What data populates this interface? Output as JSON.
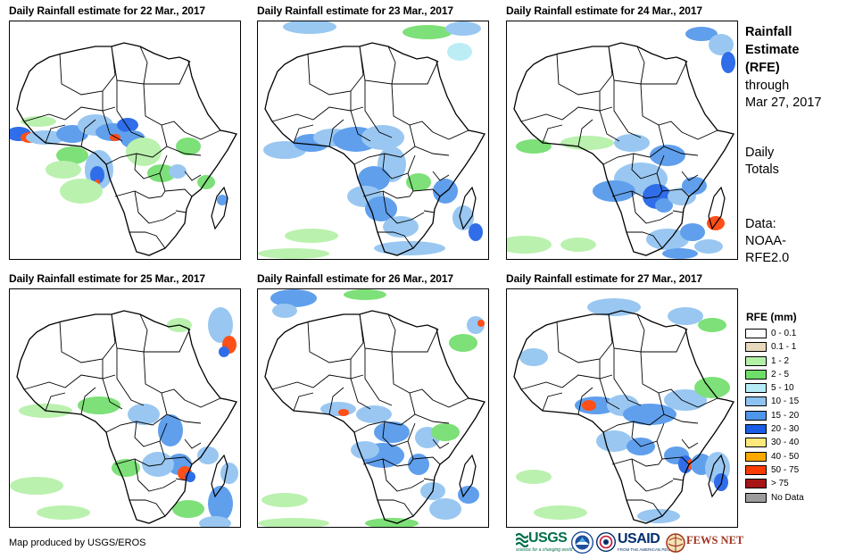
{
  "panels": [
    {
      "title": "Daily Rainfall estimate for 22 Mar., 2017"
    },
    {
      "title": "Daily Rainfall estimate for 23 Mar., 2017"
    },
    {
      "title": "Daily Rainfall estimate for 24 Mar., 2017"
    },
    {
      "title": "Daily Rainfall estimate for 25 Mar., 2017"
    },
    {
      "title": "Daily Rainfall estimate for 26 Mar., 2017"
    },
    {
      "title": "Daily Rainfall estimate for 27 Mar., 2017"
    }
  ],
  "side": {
    "title_line1": "Rainfall",
    "title_line2": "Estimate",
    "title_line3": "(RFE)",
    "through_line1": "through",
    "through_line2": "Mar 27, 2017",
    "totals_line1": "Daily",
    "totals_line2": "Totals",
    "data_line1": "Data:",
    "data_line2": "NOAA-",
    "data_line3": "RFE2.0"
  },
  "legend": {
    "title": "RFE (mm)",
    "items": [
      {
        "label": "0 - 0.1",
        "color": "#ffffff"
      },
      {
        "label": "0.1 - 1",
        "color": "#e9d9bc"
      },
      {
        "label": "1 - 2",
        "color": "#b3f0a6"
      },
      {
        "label": "2 - 5",
        "color": "#6fdd6a"
      },
      {
        "label": "5 - 10",
        "color": "#b5ecf5"
      },
      {
        "label": "10 - 15",
        "color": "#8ec2f0"
      },
      {
        "label": "15 - 20",
        "color": "#4f95ea"
      },
      {
        "label": "20 - 30",
        "color": "#1a5ee6"
      },
      {
        "label": "30 - 40",
        "color": "#ffe97a"
      },
      {
        "label": "40 - 50",
        "color": "#ffa800"
      },
      {
        "label": "50 - 75",
        "color": "#ff3c00"
      },
      {
        "label": "> 75",
        "color": "#a51515"
      },
      {
        "label": "No Data",
        "color": "#9c9c9c"
      }
    ]
  },
  "footer": {
    "credit": "Map produced by USGS/EROS",
    "logo_usgs": "USGS",
    "logo_usgs_tagline": "science for a changing world",
    "logo_noaa_icon": "noaa-seal-icon",
    "logo_usaid": "USAID",
    "logo_usaid_tagline": "FROM THE AMERICAN PEOPLE",
    "logo_fews": "FEWS NET"
  }
}
